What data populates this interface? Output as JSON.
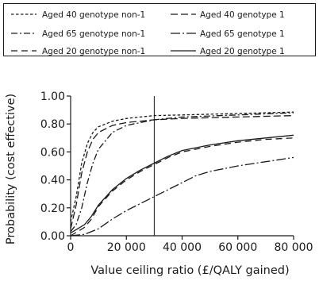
{
  "chart_data": {
    "type": "line",
    "xlabel": "Value ceiling ratio (£/QALY gained)",
    "ylabel": "Probability (cost effective)",
    "xlim": [
      0,
      80000
    ],
    "ylim": [
      0,
      1
    ],
    "x_ticks": [
      0,
      20000,
      40000,
      60000,
      80000
    ],
    "x_tick_labels": [
      "0",
      "20 000",
      "40 000",
      "60 000",
      "80 000"
    ],
    "y_ticks": [
      0,
      0.2,
      0.4,
      0.6,
      0.8,
      1.0
    ],
    "y_tick_labels": [
      "0.00",
      "0.20",
      "0.40",
      "0.60",
      "0.80",
      "1.00"
    ],
    "grid": false,
    "legend_position": "top",
    "reference_line_x": 30000,
    "series": [
      {
        "name": "Aged 40 genotype non-1",
        "dash": "short-dash",
        "points": [
          [
            0,
            0.1
          ],
          [
            2000,
            0.28
          ],
          [
            4000,
            0.52
          ],
          [
            6000,
            0.66
          ],
          [
            8000,
            0.74
          ],
          [
            10000,
            0.78
          ],
          [
            15000,
            0.82
          ],
          [
            20000,
            0.84
          ],
          [
            30000,
            0.86
          ],
          [
            40000,
            0.865
          ],
          [
            60000,
            0.875
          ],
          [
            80000,
            0.885
          ]
        ]
      },
      {
        "name": "Aged 40 genotype 1",
        "dash": "long-dash",
        "points": [
          [
            0,
            0.05
          ],
          [
            2000,
            0.22
          ],
          [
            4000,
            0.45
          ],
          [
            6000,
            0.6
          ],
          [
            8000,
            0.69
          ],
          [
            10000,
            0.74
          ],
          [
            15000,
            0.79
          ],
          [
            20000,
            0.81
          ],
          [
            30000,
            0.83
          ],
          [
            40000,
            0.84
          ],
          [
            60000,
            0.85
          ],
          [
            80000,
            0.86
          ]
        ]
      },
      {
        "name": "Aged 65 genotype non-1",
        "dash": "dash-dot",
        "points": [
          [
            0,
            0.03
          ],
          [
            2000,
            0.08
          ],
          [
            4000,
            0.2
          ],
          [
            6000,
            0.38
          ],
          [
            8000,
            0.52
          ],
          [
            10000,
            0.62
          ],
          [
            15000,
            0.74
          ],
          [
            20000,
            0.79
          ],
          [
            30000,
            0.83
          ],
          [
            40000,
            0.85
          ],
          [
            60000,
            0.865
          ],
          [
            80000,
            0.88
          ]
        ]
      },
      {
        "name": "Aged 65 genotype 1",
        "dash": "long-dash-dot",
        "points": [
          [
            0,
            0.0
          ],
          [
            5000,
            0.01
          ],
          [
            10000,
            0.05
          ],
          [
            15000,
            0.12
          ],
          [
            20000,
            0.18
          ],
          [
            25000,
            0.23
          ],
          [
            30000,
            0.28
          ],
          [
            35000,
            0.33
          ],
          [
            40000,
            0.38
          ],
          [
            45000,
            0.43
          ],
          [
            50000,
            0.46
          ],
          [
            60000,
            0.5
          ],
          [
            70000,
            0.53
          ],
          [
            80000,
            0.56
          ]
        ]
      },
      {
        "name": "Aged 20 genotype non-1",
        "dash": "dash",
        "points": [
          [
            0,
            0.0
          ],
          [
            2500,
            0.03
          ],
          [
            5000,
            0.06
          ],
          [
            7500,
            0.12
          ],
          [
            10000,
            0.21
          ],
          [
            15000,
            0.32
          ],
          [
            20000,
            0.4
          ],
          [
            25000,
            0.46
          ],
          [
            30000,
            0.51
          ],
          [
            35000,
            0.56
          ],
          [
            40000,
            0.6
          ],
          [
            50000,
            0.64
          ],
          [
            60000,
            0.67
          ],
          [
            70000,
            0.69
          ],
          [
            80000,
            0.7
          ]
        ]
      },
      {
        "name": "Aged 20 genotype 1",
        "dash": "solid",
        "points": [
          [
            0,
            0.02
          ],
          [
            2500,
            0.05
          ],
          [
            5000,
            0.08
          ],
          [
            7500,
            0.14
          ],
          [
            10000,
            0.22
          ],
          [
            15000,
            0.33
          ],
          [
            20000,
            0.41
          ],
          [
            25000,
            0.47
          ],
          [
            30000,
            0.52
          ],
          [
            35000,
            0.57
          ],
          [
            40000,
            0.61
          ],
          [
            50000,
            0.65
          ],
          [
            60000,
            0.68
          ],
          [
            70000,
            0.7
          ],
          [
            80000,
            0.72
          ]
        ]
      }
    ]
  }
}
